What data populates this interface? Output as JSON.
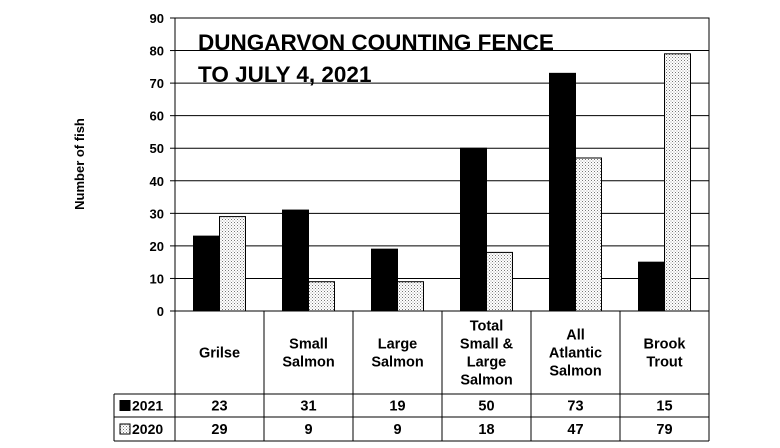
{
  "chart_data": {
    "type": "bar",
    "title": "DUNGARVON COUNTING FENCE",
    "subtitle": "TO JULY 4, 2021",
    "ylabel": "Number of fish",
    "ylim": [
      0,
      90
    ],
    "yticks": [
      0,
      10,
      20,
      30,
      40,
      50,
      60,
      70,
      80,
      90
    ],
    "grid": true,
    "categories": [
      [
        "Grilse"
      ],
      [
        "Small",
        "Salmon"
      ],
      [
        "Large",
        "Salmon"
      ],
      [
        "Total",
        "Small &",
        "Large",
        "Salmon"
      ],
      [
        "All",
        "Atlantic",
        "Salmon"
      ],
      [
        "Brook",
        "Trout"
      ]
    ],
    "series": [
      {
        "name": "2021",
        "fill": "#000000",
        "pattern": "solid",
        "values": [
          23,
          31,
          19,
          50,
          73,
          15
        ]
      },
      {
        "name": "2020",
        "fill": "#ffffff",
        "pattern": "dotted",
        "values": [
          29,
          9,
          9,
          18,
          47,
          79
        ]
      }
    ]
  }
}
